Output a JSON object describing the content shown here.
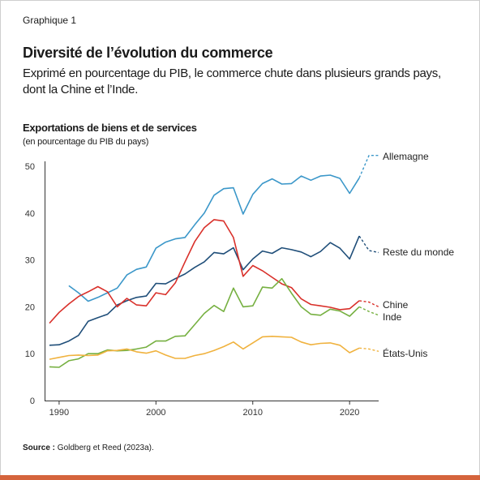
{
  "header": {
    "graph_label": "Graphique 1",
    "title": "Diversité de l’évolution du commerce",
    "subtitle_line1": "Exprimé en pourcentage du PIB, le commerce chute dans plusieurs grands pays,",
    "subtitle_line2": "dont la Chine et l’Inde."
  },
  "source": {
    "prefix": "Source :",
    "text": " Goldberg et Reed (2023a)."
  },
  "chart_data": {
    "type": "line",
    "ylabel": "Exportations de biens et de services",
    "ylabel_note": "(en pourcentage du PIB du pays)",
    "xlim": [
      1988.5,
      2023
    ],
    "ylim": [
      0,
      50
    ],
    "xticks": [
      1990,
      2000,
      2010,
      2020
    ],
    "yticks": [
      0,
      10,
      20,
      30,
      40,
      50
    ],
    "grid": false,
    "legend": "direct labels at line ends",
    "series": [
      {
        "name": "Allemagne",
        "color": "#3b97c9",
        "x": [
          1991,
          1992,
          1993,
          1994,
          1995,
          1996,
          1997,
          1998,
          1999,
          2000,
          2001,
          2002,
          2003,
          2004,
          2005,
          2006,
          2007,
          2008,
          2009,
          2010,
          2011,
          2012,
          2013,
          2014,
          2015,
          2016,
          2017,
          2018,
          2019,
          2020,
          2021
        ],
        "values": [
          24.5,
          23.0,
          21.2,
          22.0,
          23.0,
          24.0,
          26.8,
          28.0,
          28.5,
          32.5,
          33.8,
          34.5,
          34.8,
          37.5,
          40.0,
          43.8,
          45.2,
          45.4,
          39.8,
          44.0,
          46.3,
          47.3,
          46.2,
          46.3,
          47.9,
          47.0,
          47.9,
          48.1,
          47.4,
          44.2,
          47.5
        ],
        "dashed_x": [
          2021,
          2022,
          2023
        ],
        "dashed_values": [
          47.5,
          52.3,
          52.3
        ]
      },
      {
        "name": "Reste du monde",
        "color": "#1f4e79",
        "x": [
          1989,
          1990,
          1991,
          1992,
          1993,
          1994,
          1995,
          1996,
          1997,
          1998,
          1999,
          2000,
          2001,
          2002,
          2003,
          2004,
          2005,
          2006,
          2007,
          2008,
          2009,
          2010,
          2011,
          2012,
          2013,
          2014,
          2015,
          2016,
          2017,
          2018,
          2019,
          2020,
          2021
        ],
        "values": [
          11.8,
          11.9,
          12.7,
          13.9,
          16.9,
          17.7,
          18.4,
          20.4,
          21.3,
          22.0,
          22.3,
          25.0,
          24.9,
          26.0,
          27.0,
          28.4,
          29.6,
          31.6,
          31.3,
          32.6,
          27.9,
          30.2,
          31.9,
          31.4,
          32.6,
          32.2,
          31.7,
          30.7,
          31.8,
          33.7,
          32.5,
          30.2,
          35.1
        ],
        "dashed_x": [
          2021,
          2022,
          2023
        ],
        "dashed_values": [
          35.1,
          32.0,
          31.6
        ]
      },
      {
        "name": "Chine",
        "color": "#d9302a",
        "x": [
          1989,
          1990,
          1991,
          1992,
          1993,
          1994,
          1995,
          1996,
          1997,
          1998,
          1999,
          2000,
          2001,
          2002,
          2003,
          2004,
          2005,
          2006,
          2007,
          2008,
          2009,
          2010,
          2011,
          2012,
          2013,
          2014,
          2015,
          2016,
          2017,
          2018,
          2019,
          2020,
          2021
        ],
        "values": [
          16.5,
          18.8,
          20.6,
          22.2,
          23.2,
          24.3,
          23.2,
          20.0,
          21.8,
          20.4,
          20.2,
          23.0,
          22.6,
          25.1,
          29.6,
          33.9,
          36.9,
          38.6,
          38.3,
          34.8,
          26.5,
          28.8,
          27.7,
          26.3,
          24.9,
          24.1,
          21.7,
          20.5,
          20.2,
          19.9,
          19.4,
          19.6,
          21.3
        ],
        "dashed_x": [
          2021,
          2022,
          2023
        ],
        "dashed_values": [
          21.3,
          21.0,
          20.0
        ]
      },
      {
        "name": "Inde",
        "color": "#76b041",
        "x": [
          1989,
          1990,
          1991,
          1992,
          1993,
          1994,
          1995,
          1996,
          1997,
          1998,
          1999,
          2000,
          2001,
          2002,
          2003,
          2004,
          2005,
          2006,
          2007,
          2008,
          2009,
          2010,
          2011,
          2012,
          2013,
          2014,
          2015,
          2016,
          2017,
          2018,
          2019,
          2020,
          2021
        ],
        "values": [
          7.2,
          7.1,
          8.5,
          8.9,
          10.0,
          10.0,
          10.8,
          10.6,
          10.7,
          11.0,
          11.4,
          12.7,
          12.7,
          13.7,
          13.8,
          16.2,
          18.6,
          20.3,
          19.0,
          24.0,
          20.0,
          20.2,
          24.2,
          24.0,
          26.0,
          22.9,
          20.0,
          18.4,
          18.2,
          19.5,
          19.1,
          18.0,
          20.0
        ],
        "dashed_x": [
          2021,
          2022,
          2023
        ],
        "dashed_values": [
          20.0,
          19.0,
          18.2
        ]
      },
      {
        "name": "États-Unis",
        "color": "#f0b23e",
        "x": [
          1989,
          1990,
          1991,
          1992,
          1993,
          1994,
          1995,
          1996,
          1997,
          1998,
          1999,
          2000,
          2001,
          2002,
          2003,
          2004,
          2005,
          2006,
          2007,
          2008,
          2009,
          2010,
          2011,
          2012,
          2013,
          2014,
          2015,
          2016,
          2017,
          2018,
          2019,
          2020,
          2021
        ],
        "values": [
          8.8,
          9.2,
          9.6,
          9.7,
          9.6,
          9.7,
          10.6,
          10.7,
          11.0,
          10.4,
          10.1,
          10.6,
          9.7,
          9.0,
          9.0,
          9.6,
          10.0,
          10.7,
          11.5,
          12.5,
          11.0,
          12.3,
          13.6,
          13.7,
          13.6,
          13.5,
          12.5,
          11.9,
          12.2,
          12.3,
          11.8,
          10.2,
          11.2
        ],
        "dashed_x": [
          2021,
          2022,
          2023
        ],
        "dashed_values": [
          11.2,
          11.0,
          10.5
        ]
      }
    ]
  }
}
